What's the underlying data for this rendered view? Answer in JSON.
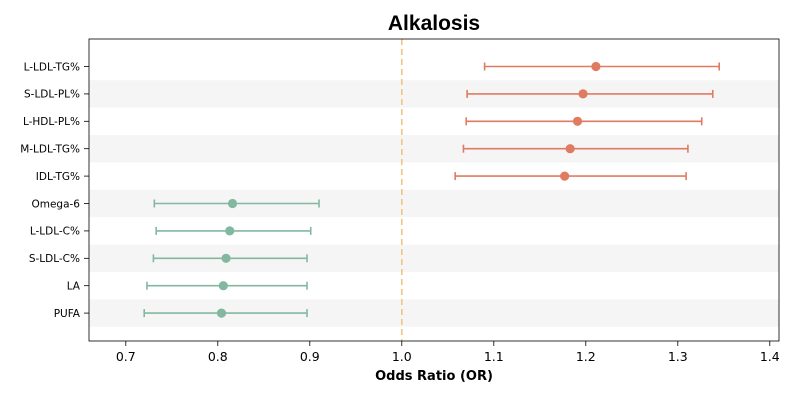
{
  "chart_data": {
    "type": "forest",
    "title": "Alkalosis",
    "xlabel": "Odds Ratio (OR)",
    "xlim": [
      0.66,
      1.41
    ],
    "xticks": [
      "0.7",
      "0.8",
      "0.9",
      "1.0",
      "1.1",
      "1.2",
      "1.3",
      "1.4"
    ],
    "reference_line": 1.0,
    "colors": {
      "positive": "#E07B61",
      "negative": "#83B8A0",
      "reference": "#F2C47E",
      "band": "#F5F5F5"
    },
    "rows": [
      {
        "label": "L-LDL-TG%",
        "or": 1.211,
        "lo": 1.09,
        "hi": 1.345
      },
      {
        "label": "S-LDL-PL%",
        "or": 1.197,
        "lo": 1.071,
        "hi": 1.338
      },
      {
        "label": "L-HDL-PL%",
        "or": 1.191,
        "lo": 1.07,
        "hi": 1.326
      },
      {
        "label": "M-LDL-TG%",
        "or": 1.183,
        "lo": 1.067,
        "hi": 1.311
      },
      {
        "label": "IDL-TG%",
        "or": 1.177,
        "lo": 1.058,
        "hi": 1.309
      },
      {
        "label": "Omega-6",
        "or": 0.816,
        "lo": 0.731,
        "hi": 0.91
      },
      {
        "label": "L-LDL-C%",
        "or": 0.813,
        "lo": 0.733,
        "hi": 0.901
      },
      {
        "label": "S-LDL-C%",
        "or": 0.809,
        "lo": 0.73,
        "hi": 0.897
      },
      {
        "label": "LA",
        "or": 0.806,
        "lo": 0.723,
        "hi": 0.897
      },
      {
        "label": "PUFA",
        "or": 0.804,
        "lo": 0.72,
        "hi": 0.897
      }
    ]
  }
}
